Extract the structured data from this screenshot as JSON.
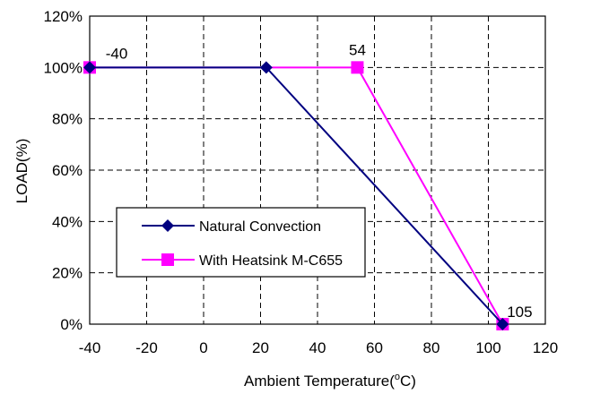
{
  "chart_data": {
    "type": "line",
    "xlabel": "Ambient Temperature(",
    "xlabel_sup": "o",
    "xlabel_unit": "C)",
    "ylabel": "LOAD(%)",
    "xlim": [
      -40,
      120
    ],
    "ylim": [
      0,
      120
    ],
    "x_ticks": [
      "-40",
      "-20",
      "0",
      "20",
      "40",
      "60",
      "80",
      "100",
      "120"
    ],
    "y_ticks": [
      "0%",
      "20%",
      "40%",
      "60%",
      "80%",
      "100%",
      "120%"
    ],
    "grid": true,
    "legend_position": "lower-left",
    "series": [
      {
        "name": "Natural Convection",
        "color": "#000080",
        "marker": "diamond",
        "points": [
          [
            -40,
            100
          ],
          [
            22,
            100
          ],
          [
            105,
            0
          ]
        ]
      },
      {
        "name": "With Heatsink M-C655",
        "color": "#ff00ff",
        "marker": "square",
        "points": [
          [
            -40,
            100
          ],
          [
            54,
            100
          ],
          [
            105,
            0
          ]
        ]
      }
    ],
    "annotations": [
      {
        "text": "-40",
        "x": -40,
        "y": 100
      },
      {
        "text": "54",
        "x": 54,
        "y": 100
      },
      {
        "text": "105",
        "x": 105,
        "y": 0
      }
    ]
  }
}
